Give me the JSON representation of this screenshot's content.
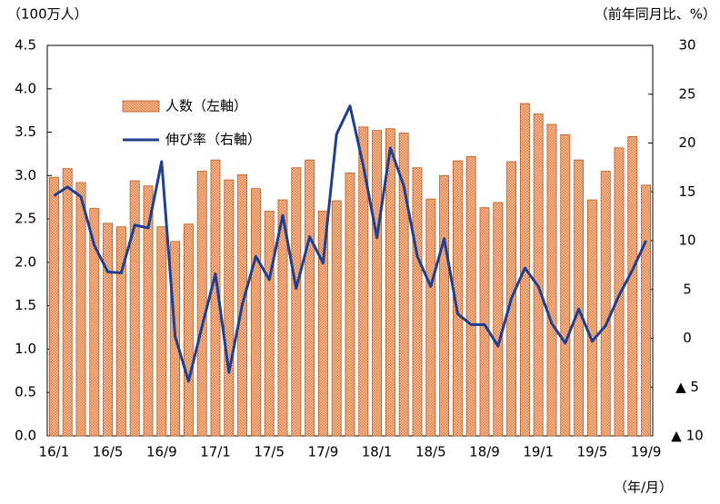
{
  "chart_data": {
    "type": "bar_line",
    "y_unit_label": "（100万人）",
    "y2_unit_label": "（前年同月比、%）",
    "x_unit_label": "（年/月）",
    "categories": [
      "16/1",
      null,
      null,
      null,
      "16/5",
      null,
      null,
      null,
      "16/9",
      null,
      null,
      null,
      "17/1",
      null,
      null,
      null,
      "17/5",
      null,
      null,
      null,
      "17/9",
      null,
      null,
      null,
      "18/1",
      null,
      null,
      null,
      "18/5",
      null,
      null,
      null,
      "18/9",
      null,
      null,
      null,
      "19/1",
      null,
      null,
      null,
      "19/5",
      null,
      null,
      null,
      "19/9"
    ],
    "series": [
      {
        "name": "人数（左軸）",
        "type": "bar",
        "color": "#f0a070",
        "values": [
          2.98,
          3.08,
          2.92,
          2.62,
          2.45,
          2.41,
          2.94,
          2.88,
          2.41,
          2.24,
          2.44,
          3.05,
          3.18,
          2.95,
          3.01,
          2.85,
          2.59,
          2.72,
          3.09,
          3.18,
          2.59,
          2.71,
          3.03,
          3.56,
          3.52,
          3.54,
          3.49,
          3.09,
          2.73,
          3.0,
          3.17,
          3.22,
          2.63,
          2.69,
          3.16,
          3.83,
          3.71,
          3.59,
          3.47,
          3.18,
          2.72,
          3.05,
          3.32,
          3.45,
          2.89
        ]
      },
      {
        "name": "伸び率（右軸）",
        "type": "line",
        "axis": "y2",
        "color": "#1f3f8f",
        "values": [
          14.6,
          15.5,
          14.5,
          9.5,
          6.8,
          6.7,
          11.6,
          11.3,
          18.1,
          0.2,
          -4.4,
          1.2,
          6.6,
          -3.5,
          3.5,
          8.4,
          6.0,
          12.6,
          5.1,
          10.4,
          7.7,
          20.9,
          23.8,
          17.6,
          10.3,
          19.5,
          15.6,
          8.4,
          5.3,
          10.2,
          2.5,
          1.4,
          1.4,
          -0.8,
          4.1,
          7.2,
          5.3,
          1.5,
          -0.5,
          3.0,
          -0.3,
          1.3,
          4.4,
          7.0,
          10.0
        ]
      }
    ],
    "ylim": [
      0,
      4.5
    ],
    "yticks": [
      {
        "value": 0,
        "label": "0.0"
      },
      0.5,
      {
        "value": 1,
        "label": "1.0"
      },
      1.5,
      {
        "value": 2,
        "label": "2.0"
      },
      2.5,
      {
        "value": 3,
        "label": "3.0"
      },
      3.5,
      {
        "value": 4,
        "label": "4.0"
      },
      4.5
    ],
    "y2lim": [
      -10,
      30
    ],
    "y2ticks": [
      {
        "value": -10,
        "label": "▲ 10"
      },
      {
        "value": -5,
        "label": "▲ 5"
      },
      0,
      5,
      10,
      15,
      20,
      25,
      30
    ],
    "grid": false
  }
}
